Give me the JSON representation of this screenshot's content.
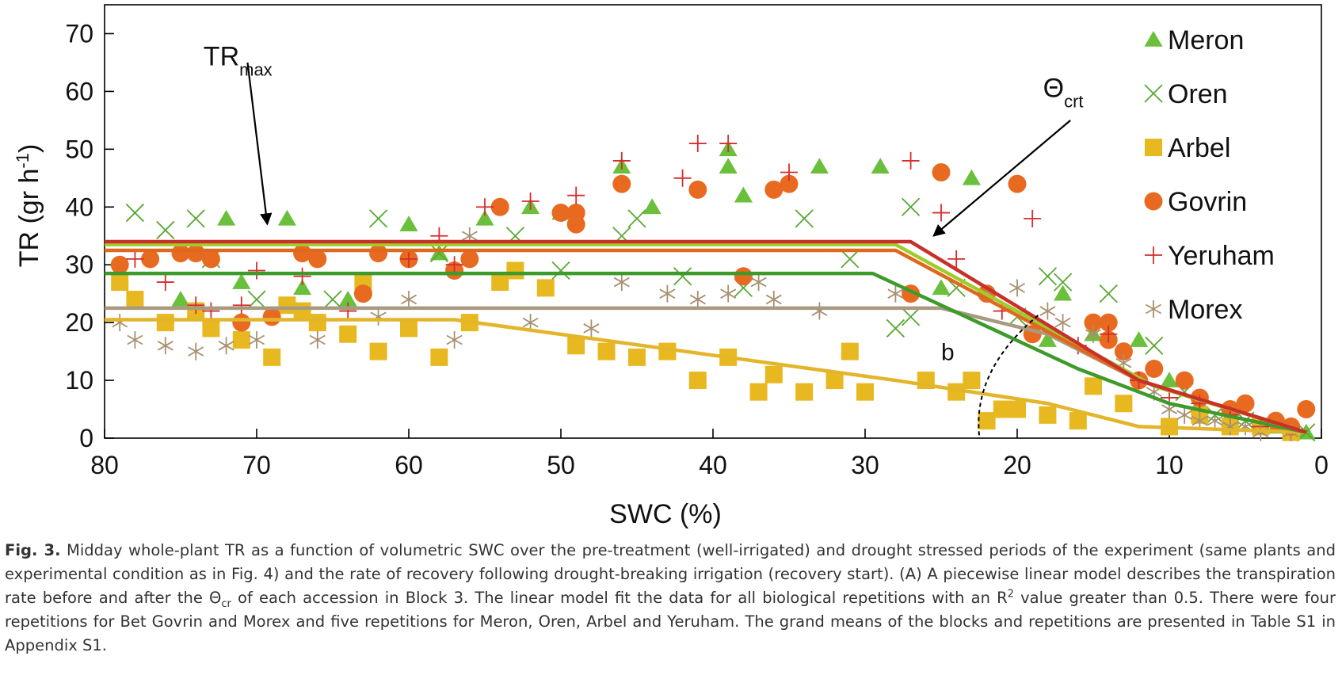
{
  "chart_data": {
    "type": "scatter",
    "xlabel": "SWC (%)",
    "ylabel": "TR (gr h-1)",
    "xlim": [
      80,
      0
    ],
    "ylim": [
      0,
      75
    ],
    "x_ticks": [
      80,
      70,
      60,
      50,
      40,
      30,
      20,
      10,
      0
    ],
    "y_ticks": [
      0,
      10,
      20,
      30,
      40,
      50,
      60,
      70
    ],
    "x_reversed": true,
    "grid": false,
    "legend_position": "top-right",
    "annotations": {
      "trmax_main": "TR",
      "trmax_sub": "max",
      "theta_main": "Θ",
      "theta_sub": "crt",
      "b_label": "b",
      "trmax_arrow_from": [
        70.6,
        65
      ],
      "trmax_arrow_to": [
        69.3,
        37
      ],
      "theta_arrow_from": [
        16.5,
        55
      ],
      "theta_arrow_to": [
        25.5,
        35
      ]
    },
    "series": [
      {
        "name": "Meron",
        "color": "#6abf3b",
        "marker": "triangle",
        "fit": [
          [
            80,
            33.5
          ],
          [
            28,
            33.5
          ],
          [
            11,
            9
          ],
          [
            1,
            1
          ]
        ],
        "fit_color": "#9fcc2a",
        "points": [
          [
            79,
            28
          ],
          [
            75,
            24
          ],
          [
            72,
            38
          ],
          [
            71,
            27
          ],
          [
            68,
            38
          ],
          [
            67,
            26
          ],
          [
            64,
            24
          ],
          [
            60,
            37
          ],
          [
            58,
            32
          ],
          [
            55,
            38
          ],
          [
            52,
            40
          ],
          [
            50,
            39
          ],
          [
            46,
            47
          ],
          [
            44,
            40
          ],
          [
            39,
            50
          ],
          [
            39,
            47
          ],
          [
            38,
            42
          ],
          [
            33,
            47
          ],
          [
            29,
            47
          ],
          [
            25,
            26
          ],
          [
            23,
            45
          ],
          [
            18,
            17
          ],
          [
            17,
            25
          ],
          [
            15,
            18
          ],
          [
            12,
            17
          ],
          [
            10,
            10
          ],
          [
            8,
            6
          ],
          [
            6,
            4
          ],
          [
            3,
            2
          ],
          [
            1,
            1
          ]
        ]
      },
      {
        "name": "Oren",
        "color": "#5aa832",
        "marker": "x",
        "fit": [
          [
            80,
            28.5
          ],
          [
            29.5,
            28.5
          ],
          [
            16,
            12
          ],
          [
            10,
            6
          ],
          [
            1,
            1
          ]
        ],
        "fit_color": "#3e9a2a",
        "points": [
          [
            78,
            39
          ],
          [
            76,
            36
          ],
          [
            74,
            38
          ],
          [
            73,
            31
          ],
          [
            70,
            24
          ],
          [
            65,
            24
          ],
          [
            62,
            38
          ],
          [
            58,
            32
          ],
          [
            53,
            35
          ],
          [
            50,
            29
          ],
          [
            46,
            35
          ],
          [
            45,
            38
          ],
          [
            42,
            28
          ],
          [
            38,
            26
          ],
          [
            34,
            38
          ],
          [
            31,
            31
          ],
          [
            28,
            19
          ],
          [
            27,
            21
          ],
          [
            27,
            40
          ],
          [
            24,
            26
          ],
          [
            20,
            21
          ],
          [
            18,
            28
          ],
          [
            17,
            27
          ],
          [
            14,
            25
          ],
          [
            11,
            16
          ],
          [
            9,
            8
          ],
          [
            7,
            4
          ],
          [
            5,
            3
          ],
          [
            3,
            2
          ],
          [
            1,
            1
          ]
        ]
      },
      {
        "name": "Arbel",
        "color": "#e8b820",
        "marker": "square",
        "fit": [
          [
            80,
            20.5
          ],
          [
            57,
            20.5
          ],
          [
            28,
            10
          ],
          [
            18,
            6
          ],
          [
            12,
            2
          ],
          [
            1,
            1
          ]
        ],
        "fit_color": "#e3b52a",
        "points": [
          [
            79,
            27
          ],
          [
            78,
            24
          ],
          [
            76,
            20
          ],
          [
            74,
            22
          ],
          [
            73,
            19
          ],
          [
            71,
            17
          ],
          [
            69,
            14
          ],
          [
            68,
            23
          ],
          [
            67,
            22
          ],
          [
            66,
            20
          ],
          [
            64,
            18
          ],
          [
            63,
            27
          ],
          [
            62,
            15
          ],
          [
            60,
            19
          ],
          [
            58,
            14
          ],
          [
            56,
            20
          ],
          [
            54,
            27
          ],
          [
            53,
            29
          ],
          [
            51,
            26
          ],
          [
            49,
            16
          ],
          [
            47,
            15
          ],
          [
            45,
            14
          ],
          [
            43,
            15
          ],
          [
            41,
            10
          ],
          [
            39,
            14
          ],
          [
            37,
            8
          ],
          [
            36,
            11
          ],
          [
            34,
            8
          ],
          [
            32,
            10
          ],
          [
            31,
            15
          ],
          [
            30,
            8
          ],
          [
            26,
            10
          ],
          [
            24,
            8
          ],
          [
            23,
            10
          ],
          [
            22,
            3
          ],
          [
            21,
            5
          ],
          [
            20,
            5
          ],
          [
            18,
            4
          ],
          [
            16,
            3
          ],
          [
            15,
            9
          ],
          [
            13,
            6
          ],
          [
            10,
            2
          ],
          [
            8,
            4
          ],
          [
            6,
            2
          ],
          [
            4,
            2
          ],
          [
            2,
            1
          ]
        ]
      },
      {
        "name": "Govrin",
        "color": "#e86a20",
        "marker": "circle",
        "fit": [
          [
            80,
            32.5
          ],
          [
            28,
            32.5
          ],
          [
            12,
            10
          ],
          [
            1,
            1
          ]
        ],
        "fit_color": "#e0681e",
        "points": [
          [
            79,
            30
          ],
          [
            77,
            31
          ],
          [
            75,
            32
          ],
          [
            74,
            32
          ],
          [
            73,
            31
          ],
          [
            71,
            20
          ],
          [
            69,
            21
          ],
          [
            67,
            32
          ],
          [
            66,
            31
          ],
          [
            63,
            25
          ],
          [
            62,
            32
          ],
          [
            60,
            31
          ],
          [
            57,
            29
          ],
          [
            56,
            31
          ],
          [
            54,
            40
          ],
          [
            50,
            39
          ],
          [
            49,
            39
          ],
          [
            49,
            37
          ],
          [
            46,
            44
          ],
          [
            41,
            43
          ],
          [
            38,
            28
          ],
          [
            36,
            43
          ],
          [
            35,
            44
          ],
          [
            27,
            25
          ],
          [
            25,
            46
          ],
          [
            22,
            25
          ],
          [
            20,
            44
          ],
          [
            19,
            18
          ],
          [
            15,
            20
          ],
          [
            14,
            20
          ],
          [
            14,
            17
          ],
          [
            13,
            15
          ],
          [
            12,
            10
          ],
          [
            11,
            12
          ],
          [
            9,
            10
          ],
          [
            8,
            7
          ],
          [
            6,
            5
          ],
          [
            5,
            6
          ],
          [
            3,
            3
          ],
          [
            2,
            2
          ],
          [
            1,
            5
          ]
        ]
      },
      {
        "name": "Yeruham",
        "color": "#d62c2c",
        "marker": "plus",
        "fit": [
          [
            80,
            34
          ],
          [
            27,
            34
          ],
          [
            12,
            10
          ],
          [
            1,
            1
          ]
        ],
        "fit_color": "#c9302a",
        "points": [
          [
            78,
            31
          ],
          [
            76,
            27
          ],
          [
            74,
            23
          ],
          [
            73,
            22
          ],
          [
            71,
            23
          ],
          [
            70,
            29
          ],
          [
            67,
            28
          ],
          [
            64,
            22
          ],
          [
            60,
            31
          ],
          [
            58,
            35
          ],
          [
            57,
            30
          ],
          [
            55,
            40
          ],
          [
            52,
            41
          ],
          [
            49,
            42
          ],
          [
            46,
            48
          ],
          [
            42,
            45
          ],
          [
            41,
            51
          ],
          [
            39,
            51
          ],
          [
            35,
            46
          ],
          [
            27,
            48
          ],
          [
            25,
            39
          ],
          [
            24,
            31
          ],
          [
            21,
            22
          ],
          [
            19,
            38
          ],
          [
            16,
            16
          ],
          [
            14,
            18
          ],
          [
            12,
            10
          ],
          [
            10,
            7
          ],
          [
            8,
            6
          ],
          [
            6,
            4
          ],
          [
            4,
            2
          ],
          [
            2,
            1
          ]
        ]
      },
      {
        "name": "Morex",
        "color": "#a89070",
        "marker": "asterisk",
        "fit": [
          [
            80,
            22.5
          ],
          [
            25,
            22.5
          ],
          [
            18,
            18
          ],
          [
            12,
            10
          ],
          [
            1,
            1
          ]
        ],
        "fit_color": "#a89a80",
        "points": [
          [
            79,
            20
          ],
          [
            78,
            17
          ],
          [
            76,
            16
          ],
          [
            74,
            15
          ],
          [
            72,
            16
          ],
          [
            70,
            17
          ],
          [
            66,
            17
          ],
          [
            62,
            21
          ],
          [
            60,
            24
          ],
          [
            57,
            17
          ],
          [
            56,
            35
          ],
          [
            52,
            20
          ],
          [
            48,
            19
          ],
          [
            46,
            27
          ],
          [
            43,
            25
          ],
          [
            41,
            24
          ],
          [
            39,
            25
          ],
          [
            37,
            27
          ],
          [
            36,
            24
          ],
          [
            33,
            22
          ],
          [
            28,
            25
          ],
          [
            22,
            25
          ],
          [
            20,
            26
          ],
          [
            18,
            22
          ],
          [
            17,
            20
          ],
          [
            15,
            18
          ],
          [
            13,
            13
          ],
          [
            11,
            8
          ],
          [
            10,
            5
          ],
          [
            9,
            4
          ],
          [
            8,
            3
          ],
          [
            7,
            3
          ],
          [
            6,
            2
          ],
          [
            5,
            2
          ],
          [
            4,
            1
          ],
          [
            2,
            1
          ]
        ]
      }
    ]
  },
  "caption": {
    "fig_label": "Fig. 3.",
    "text_1": " Midday whole-plant TR as a function of volumetric SWC over the pre-treatment (well-irrigated) and drought stressed periods of the experiment (same plants and experimental condition as in Fig. 4) and the rate of recovery following drought-breaking irrigation (recovery start). (A) A piecewise linear model describes the transpiration rate before and after the Θ",
    "theta_sub": "cr",
    "text_2": " of each accession in Block 3. The linear model fit the data for all biological repetitions with an R",
    "r_sup": "2",
    "text_3": " value greater than 0.5. There were four repetitions for Bet Govrin and Morex and five repetitions for Meron, Oren, Arbel and Yeruham. The grand means of the blocks and repetitions are presented in Table S1 in Appendix S1."
  }
}
